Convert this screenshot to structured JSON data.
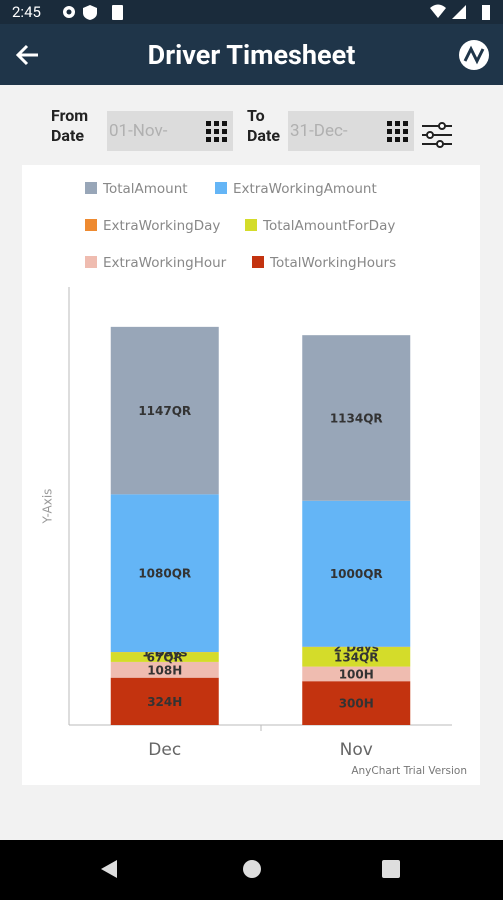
{
  "status_bar": {
    "time": "2:45"
  },
  "header": {
    "title": "Driver Timesheet"
  },
  "filters": {
    "from_label": "From\nDate",
    "from_value": "01-Nov-",
    "to_label": "To\nDate",
    "to_value": "31-Dec-"
  },
  "chart_data": {
    "type": "stacked_bar",
    "categories": [
      "Dec",
      "Nov"
    ],
    "y_label": "Y-Axis",
    "ylim": [
      0,
      3000
    ],
    "watermark": "AnyChart Trial Version",
    "series": [
      {
        "name": "TotalAmount",
        "color": "#98a6b8",
        "values": [
          1147,
          1134
        ],
        "value_labels": [
          "1147QR",
          "1134QR"
        ]
      },
      {
        "name": "ExtraWorkingAmount",
        "color": "#64b5f6",
        "values": [
          1080,
          1000
        ],
        "value_labels": [
          "1080QR",
          "1000QR"
        ]
      },
      {
        "name": "ExtraWorkingDay",
        "color": "#ee8a30",
        "values": [
          1,
          2
        ],
        "value_labels": [
          "1 Days",
          "2 Days"
        ]
      },
      {
        "name": "TotalAmountForDay",
        "color": "#d4dc2a",
        "values": [
          67,
          134
        ],
        "value_labels": [
          "67QR",
          "134QR"
        ]
      },
      {
        "name": "ExtraWorkingHour",
        "color": "#efbcb0",
        "values": [
          108,
          100
        ],
        "value_labels": [
          "108H",
          "100H"
        ]
      },
      {
        "name": "TotalWorkingHours",
        "color": "#c3330f",
        "values": [
          324,
          300
        ],
        "value_labels": [
          "324H",
          "300H"
        ]
      }
    ]
  }
}
